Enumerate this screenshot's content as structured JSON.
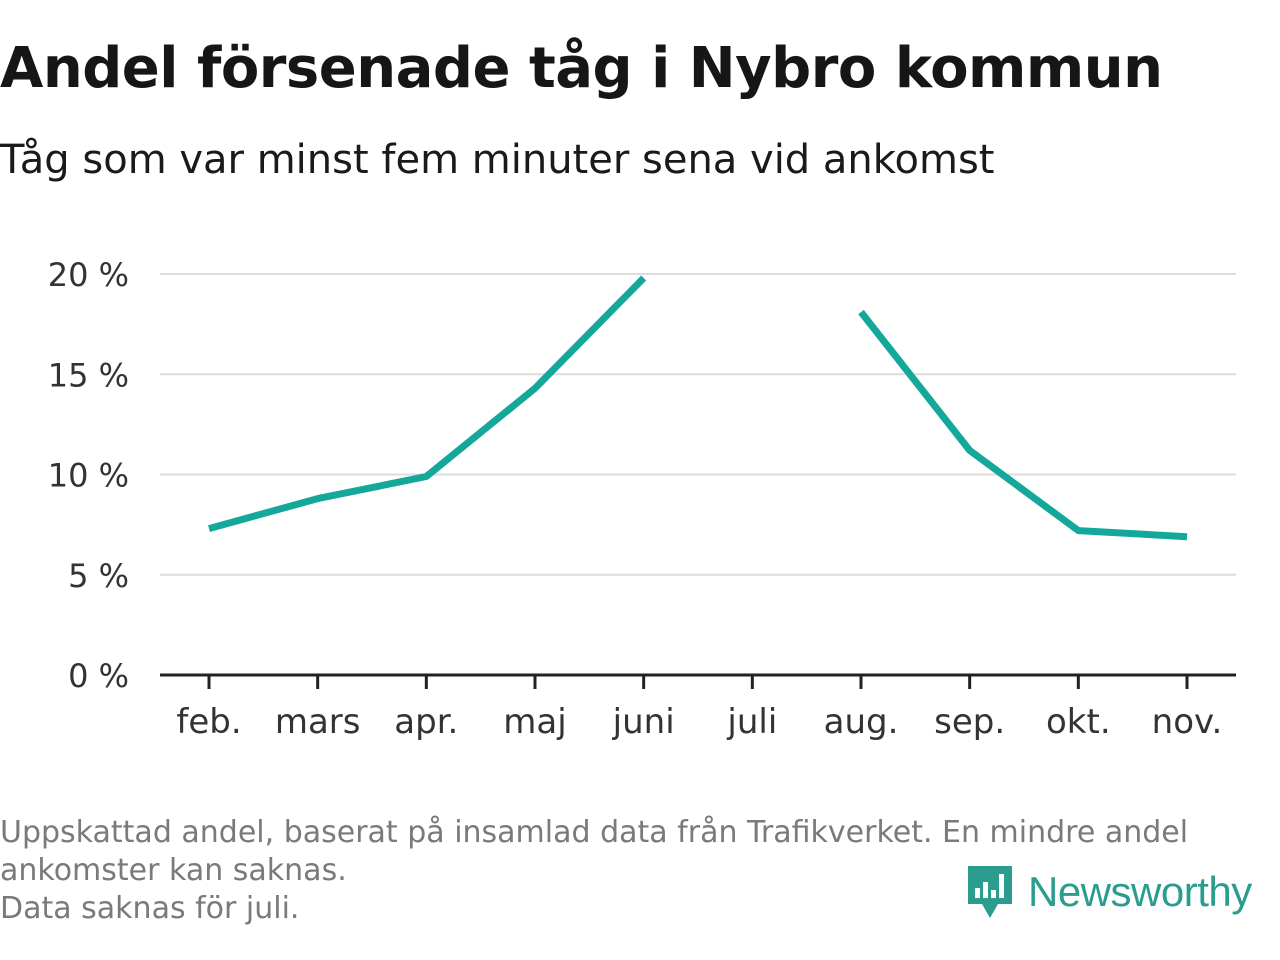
{
  "header": {
    "title": "Andel försenade tåg i Nybro kommun",
    "subtitle": "Tåg som var minst fem minuter sena vid ankomst"
  },
  "chart_data": {
    "type": "line",
    "title": "Andel försenade tåg i Nybro kommun",
    "subtitle": "Tåg som var minst fem minuter sena vid ankomst",
    "categories": [
      "feb.",
      "mars",
      "apr.",
      "maj",
      "juni",
      "juli",
      "aug.",
      "sep.",
      "okt.",
      "nov."
    ],
    "series": [
      {
        "values": [
          7.3,
          8.8,
          9.9,
          14.3,
          19.8,
          null,
          18.1,
          11.2,
          7.2,
          6.9
        ],
        "color": "#14a89a"
      }
    ],
    "ylim": [
      0,
      20
    ],
    "yticks": [
      0,
      5,
      10,
      15,
      20
    ],
    "ytick_labels": [
      "0 %",
      "5 %",
      "10 %",
      "15 %",
      "20 %"
    ],
    "xlabel": "",
    "ylabel": "",
    "grid": true,
    "legend": "none"
  },
  "footer": {
    "note_lines": [
      "Uppskattad andel, baserat på insamlad data från Trafikverket. En mindre andel",
      "ankomster kan saknas.",
      "Data saknas för juli."
    ],
    "brand": "Newsworthy"
  },
  "colors": {
    "line": "#14a89a",
    "grid": "#dcdcdc",
    "axis": "#222222",
    "brand": "#2a9d8f",
    "footnote": "#7a7a7a"
  }
}
